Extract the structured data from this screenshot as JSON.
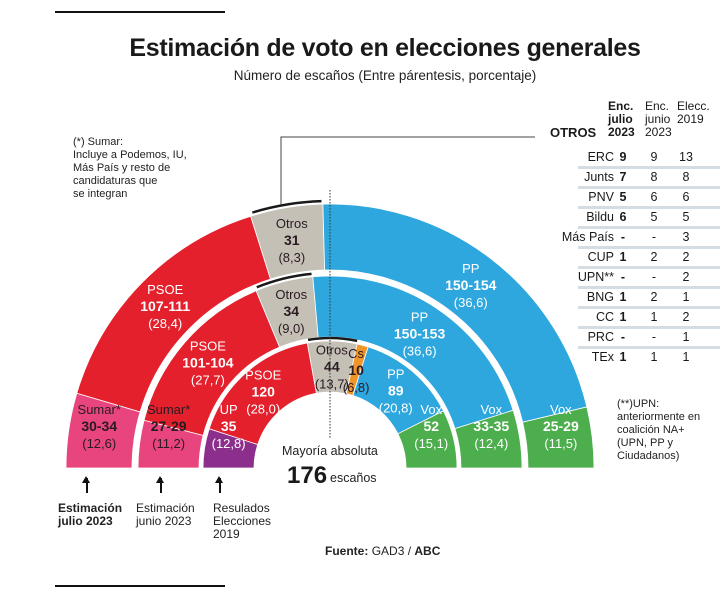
{
  "title": "Estimación de voto en elecciones generales",
  "subtitle": "Número de escaños (Entre párentesis, porcentaje)",
  "notes": {
    "sumar": "(*) Sumar:\nIncluye a Podemos, IU,\nMás País y resto de\ncandidaturas que\nse integran",
    "upn": "(**)UPN:\nanteriormente en\ncoalición NA+\n(UPN, PP y\nCiudadanos)"
  },
  "majority": {
    "label": "Mayoría absoluta",
    "value": "176",
    "unit": "escaños"
  },
  "source": {
    "prefix": "Fuente:",
    "text": "GAD3 /",
    "brand": "ABC"
  },
  "ring_labels": [
    {
      "text": "Estimación\njulio 2023",
      "bold": true
    },
    {
      "text": "Estimación\njunio 2023",
      "bold": false
    },
    {
      "text": "Resulados\nElecciones\n2019",
      "bold": false
    }
  ],
  "colors": {
    "sumar": "#e8457f",
    "up": "#8c2f8c",
    "psoe": "#e3202c",
    "otros": "#c5c0b6",
    "cs": "#f0952a",
    "pp": "#2ea7de",
    "vox": "#4cae4c"
  },
  "chart_data": {
    "type": "pie",
    "subtype": "semicircle-parliament",
    "title": "Estimación de voto en elecciones generales",
    "subtitle": "Número de escaños (Entre párentesis, porcentaje)",
    "total_seats": 350,
    "majority": 176,
    "rings": [
      {
        "name": "Estimación julio 2023",
        "segments": [
          {
            "party": "Sumar*",
            "seats_label": "30-34",
            "seats": 32,
            "pct": "12,6",
            "color_key": "sumar",
            "dark_text": true
          },
          {
            "party": "PSOE",
            "seats_label": "107-111",
            "seats": 109,
            "pct": "28,4",
            "color_key": "psoe",
            "dark_text": false
          },
          {
            "party": "Otros",
            "seats_label": "31",
            "seats": 31,
            "pct": "8,3",
            "color_key": "otros",
            "dark_text": true
          },
          {
            "party": "PP",
            "seats_label": "150-154",
            "seats": 152,
            "pct": "36,6",
            "color_key": "pp",
            "dark_text": false
          },
          {
            "party": "Vox",
            "seats_label": "25-29",
            "seats": 26,
            "pct": "11,5",
            "color_key": "vox",
            "dark_text": false
          }
        ]
      },
      {
        "name": "Estimación junio 2023",
        "segments": [
          {
            "party": "Sumar*",
            "seats_label": "27-29",
            "seats": 28,
            "pct": "11,2",
            "color_key": "sumar",
            "dark_text": true
          },
          {
            "party": "PSOE",
            "seats_label": "101-104",
            "seats": 103,
            "pct": "27,7",
            "color_key": "psoe",
            "dark_text": false
          },
          {
            "party": "Otros",
            "seats_label": "34",
            "seats": 34,
            "pct": "9,0",
            "color_key": "otros",
            "dark_text": true
          },
          {
            "party": "PP",
            "seats_label": "150-153",
            "seats": 151,
            "pct": "36,6",
            "color_key": "pp",
            "dark_text": false
          },
          {
            "party": "Vox",
            "seats_label": "33-35",
            "seats": 34,
            "pct": "12,4",
            "color_key": "vox",
            "dark_text": false
          }
        ]
      },
      {
        "name": "Resultados Elecciones 2019",
        "segments": [
          {
            "party": "UP",
            "seats_label": "35",
            "seats": 35,
            "pct": "12,8",
            "color_key": "up",
            "dark_text": false
          },
          {
            "party": "PSOE",
            "seats_label": "120",
            "seats": 120,
            "pct": "28,0",
            "color_key": "psoe",
            "dark_text": false
          },
          {
            "party": "Otros",
            "seats_label": "44",
            "seats": 44,
            "pct": "13,7",
            "color_key": "otros",
            "dark_text": true
          },
          {
            "party": "Cs",
            "seats_label": "10",
            "seats": 10,
            "pct": "6,8",
            "color_key": "cs",
            "dark_text": true
          },
          {
            "party": "PP",
            "seats_label": "89",
            "seats": 89,
            "pct": "20,8",
            "color_key": "pp",
            "dark_text": false
          },
          {
            "party": "Vox",
            "seats_label": "52",
            "seats": 52,
            "pct": "15,1",
            "color_key": "vox",
            "dark_text": false
          }
        ]
      }
    ],
    "otros_table": {
      "title": "OTROS",
      "columns": [
        "Enc.\njulio\n2023",
        "Enc.\njunio\n2023",
        "Elecc.\n2019"
      ],
      "rows": [
        {
          "party": "ERC",
          "values": [
            "9",
            "9",
            "13"
          ]
        },
        {
          "party": "Junts",
          "values": [
            "7",
            "8",
            "8"
          ]
        },
        {
          "party": "PNV",
          "values": [
            "5",
            "6",
            "6"
          ]
        },
        {
          "party": "Bildu",
          "values": [
            "6",
            "5",
            "5"
          ]
        },
        {
          "party": "Más País",
          "values": [
            "-",
            "-",
            "3"
          ]
        },
        {
          "party": "CUP",
          "values": [
            "1",
            "2",
            "2"
          ]
        },
        {
          "party": "UPN**",
          "values": [
            "-",
            "-",
            "2"
          ]
        },
        {
          "party": "BNG",
          "values": [
            "1",
            "2",
            "1"
          ]
        },
        {
          "party": "CC",
          "values": [
            "1",
            "1",
            "2"
          ]
        },
        {
          "party": "PRC",
          "values": [
            "-",
            "-",
            "1"
          ]
        },
        {
          "party": "TEx",
          "values": [
            "1",
            "1",
            "1"
          ]
        }
      ]
    }
  }
}
